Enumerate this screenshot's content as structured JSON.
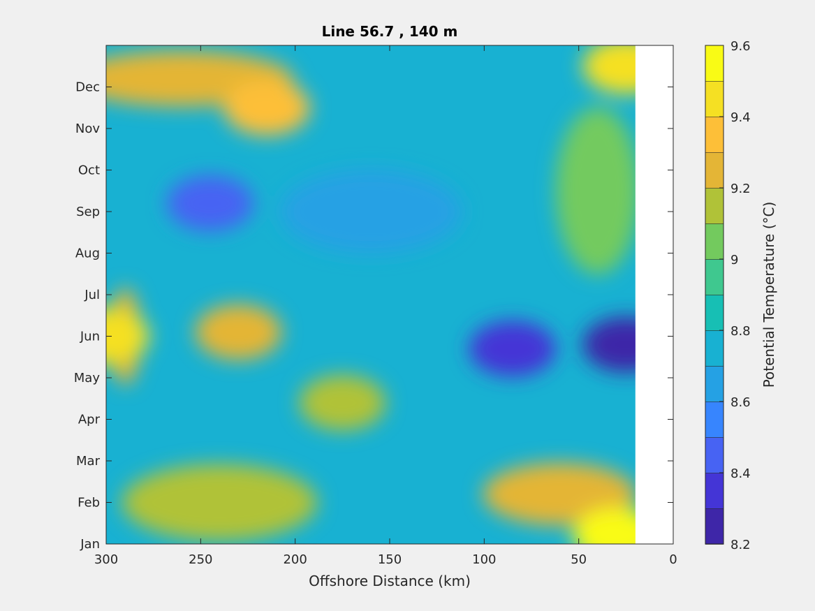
{
  "chart_data": {
    "type": "heatmap",
    "subtype": "filled-contour",
    "title": "Line 56.7 , 140 m",
    "xlabel": "Offshore Distance (km)",
    "xlim": [
      300,
      0
    ],
    "x_reversed": true,
    "x_ticks": [
      300,
      250,
      200,
      150,
      100,
      50,
      0
    ],
    "x_tick_labels": [
      "300",
      "250",
      "200",
      "150",
      "100",
      "50",
      "0"
    ],
    "ylabel": "",
    "y_ticks": [
      0,
      1,
      2,
      3,
      4,
      5,
      6,
      7,
      8,
      9,
      10,
      11
    ],
    "y_tick_labels": [
      "Jan",
      "Feb",
      "Mar",
      "Apr",
      "May",
      "Jun",
      "Jul",
      "Aug",
      "Sep",
      "Oct",
      "Nov",
      "Dec"
    ],
    "ylim": [
      0,
      12
    ],
    "data_x_range": [
      300,
      20
    ],
    "colorbar": {
      "label": "Potential Temperature (°C)",
      "clim": [
        8.2,
        9.6
      ],
      "ticks": [
        8.2,
        8.4,
        8.6,
        8.8,
        9,
        9.2,
        9.4,
        9.6
      ],
      "tick_labels": [
        "8.2",
        "8.4",
        "8.6",
        "8.8",
        "9",
        "9.2",
        "9.4",
        "9.6"
      ],
      "level_step": 0.1,
      "colors": [
        "#3e26a8",
        "#4435d6",
        "#4763f3",
        "#3785fe",
        "#25a1e4",
        "#18b1d2",
        "#17bfb4",
        "#3fc88f",
        "#73ca5e",
        "#b0c238",
        "#e4b536",
        "#fdbf38",
        "#f5e023",
        "#f9fb15"
      ]
    },
    "features": [
      {
        "x": 230,
        "y": 5.1,
        "value": 9.25,
        "description": "warm patch"
      },
      {
        "x": 175,
        "y": 3.4,
        "value": 9.15,
        "description": "warm patch"
      },
      {
        "x": 215,
        "y": 10.5,
        "value": 9.35,
        "description": "warm band"
      },
      {
        "x": 85,
        "y": 4.7,
        "value": 8.35,
        "description": "cold core"
      },
      {
        "x": 25,
        "y": 4.8,
        "value": 8.25,
        "description": "cold core"
      },
      {
        "x": 245,
        "y": 8.2,
        "value": 8.45,
        "description": "cool patch"
      },
      {
        "x": 25,
        "y": 11.5,
        "value": 9.45,
        "description": "warm corner"
      },
      {
        "x": 30,
        "y": 0.2,
        "value": 9.5,
        "description": "warm corner"
      },
      {
        "x": 300,
        "y": 5.0,
        "value": 9.4,
        "description": "warm edge"
      }
    ]
  }
}
